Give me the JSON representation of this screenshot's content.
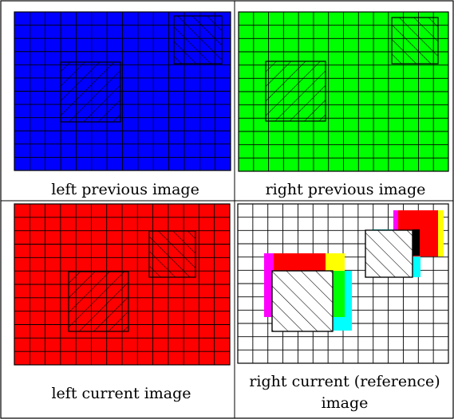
{
  "panels": [
    {
      "id": "left-previous",
      "caption_lines": [
        "left previous image"
      ],
      "background": "#0000ff"
    },
    {
      "id": "right-previous",
      "caption_lines": [
        "right previous image"
      ],
      "background": "#00ff00"
    },
    {
      "id": "left-current",
      "caption_lines": [
        "left current image"
      ],
      "background": "#ff0000"
    },
    {
      "id": "right-current-reference",
      "caption_lines": [
        "right current (reference)",
        "image"
      ],
      "background": "#ffffff"
    }
  ],
  "colors": {
    "grid_line": "#000000",
    "hatch_fill": "#ffffff",
    "overlap_magenta": "#ff00ff",
    "overlap_red": "#ff0000",
    "overlap_yellow": "#ffff00",
    "overlap_green": "#00ff00",
    "overlap_cyan": "#00ffff",
    "overlap_black": "#000000"
  }
}
